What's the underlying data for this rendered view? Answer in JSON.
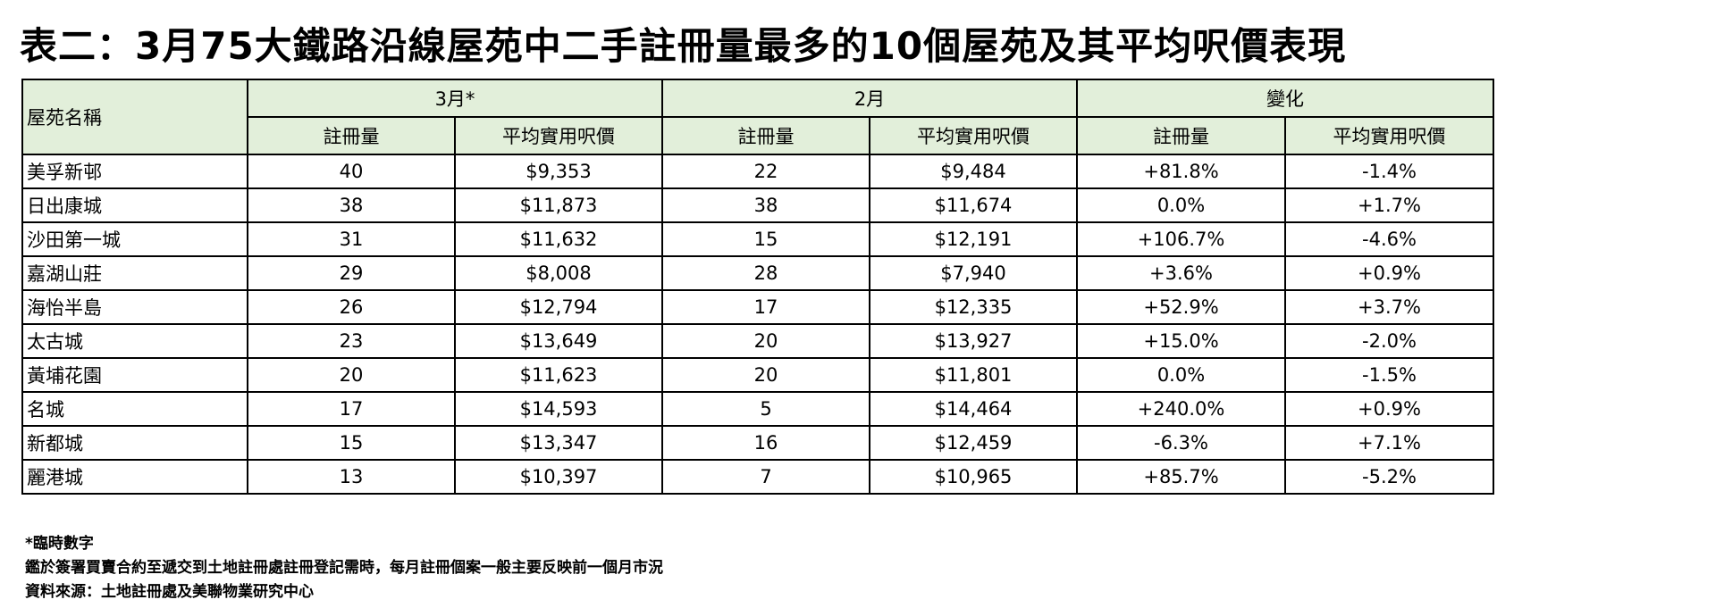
{
  "title": "表二：3月75大鐵路沿線屋苑中二手註冊量最多的10個屋苑及其平均呎價表現",
  "table": {
    "col_name_header": "屋苑名稱",
    "group_headers": [
      "3月*",
      "2月",
      "變化"
    ],
    "sub_headers": [
      "註冊量",
      "平均實用呎價",
      "註冊量",
      "平均實用呎價",
      "註冊量",
      "平均實用呎價"
    ],
    "rows": [
      [
        "美孚新邨",
        "40",
        "$9,353",
        "22",
        "$9,484",
        "+81.8%",
        "-1.4%"
      ],
      [
        "日出康城",
        "38",
        "$11,873",
        "38",
        "$11,674",
        "0.0%",
        "+1.7%"
      ],
      [
        "沙田第一城",
        "31",
        "$11,632",
        "15",
        "$12,191",
        "+106.7%",
        "-4.6%"
      ],
      [
        "嘉湖山莊",
        "29",
        "$8,008",
        "28",
        "$7,940",
        "+3.6%",
        "+0.9%"
      ],
      [
        "海怡半島",
        "26",
        "$12,794",
        "17",
        "$12,335",
        "+52.9%",
        "+3.7%"
      ],
      [
        "太古城",
        "23",
        "$13,649",
        "20",
        "$13,927",
        "+15.0%",
        "-2.0%"
      ],
      [
        "黃埔花園",
        "20",
        "$11,623",
        "20",
        "$11,801",
        "0.0%",
        "-1.5%"
      ],
      [
        "名城",
        "17",
        "$14,593",
        "5",
        "$14,464",
        "+240.0%",
        "+0.9%"
      ],
      [
        "新都城",
        "15",
        "$13,347",
        "16",
        "$12,459",
        "-6.3%",
        "+7.1%"
      ],
      [
        "麗港城",
        "13",
        "$10,397",
        "7",
        "$10,965",
        "+85.7%",
        "-5.2%"
      ]
    ]
  },
  "notes": [
    "*臨時數字",
    "鑑於簽署買賣合約至遞交到土地註冊處註冊登記需時，每月註冊個案一般主要反映前一個月市況",
    "資料來源：土地註冊處及美聯物業研究中心"
  ],
  "colors": {
    "header_bg": "#e2efda",
    "border": "#000000"
  }
}
